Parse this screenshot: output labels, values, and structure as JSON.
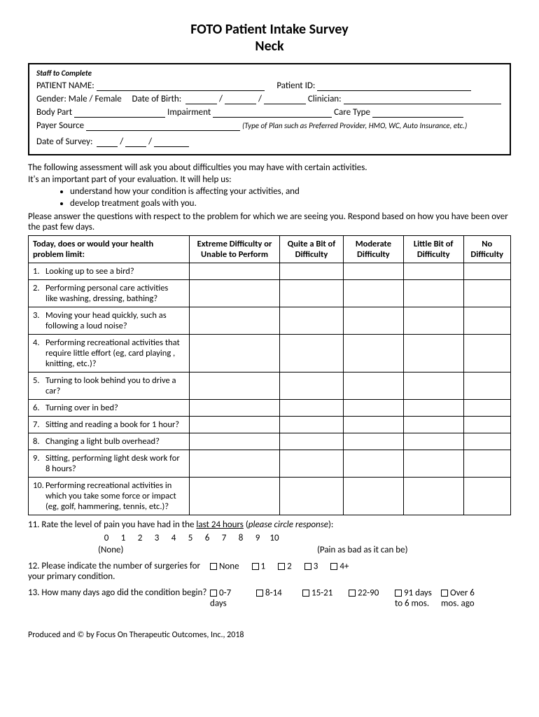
{
  "header": {
    "title": "FOTO Patient Intake Survey",
    "subtitle": "Neck"
  },
  "staff": {
    "heading": "Staff to Complete",
    "patient_name_label": "PATIENT NAME:",
    "patient_id_label": "Patient ID:",
    "gender_label": "Gender: Male / Female",
    "dob_label": "Date of Birth:",
    "clinician_label": "Clinician:",
    "body_part_label": "Body Part",
    "impairment_label": "Impairment",
    "care_type_label": "Care Type",
    "payer_source_label": "Payer Source",
    "payer_note": "(Type of Plan such as Preferred Provider, HMO, WC, Auto Insurance, etc.)",
    "date_survey_label": "Date of Survey:"
  },
  "intro": {
    "line1": "The following assessment will ask you about difficulties you may have with certain activities.",
    "line2": "It's an important part of your evaluation.  It will help us:",
    "bullet1": "understand how your condition is affecting your activities, and",
    "bullet2": "develop treatment goals with you.",
    "line3": "Please answer the questions with respect to the problem for which we are seeing you.  Respond based on how you have been over the past few days."
  },
  "table": {
    "prompt": "Today, does or would your health problem limit:",
    "cols": [
      "Extreme Difficulty or Unable to Perform",
      "Quite a Bit of Difficulty",
      "Moderate Difficulty",
      "Little Bit of Difficulty",
      "No Difficulty"
    ],
    "questions": [
      {
        "n": "1.",
        "t": "Looking up to see a bird?"
      },
      {
        "n": "2.",
        "t": "Performing personal care activities like washing, dressing, bathing?"
      },
      {
        "n": "3.",
        "t": "Moving your head quickly, such as following a loud noise?"
      },
      {
        "n": "4.",
        "t": "Performing recreational activities that require little effort (eg, card playing , knitting, etc.)?"
      },
      {
        "n": "5.",
        "t": "Turning to look behind you to drive a car?"
      },
      {
        "n": "6.",
        "t": "Turning over in bed?"
      },
      {
        "n": "7.",
        "t": "Sitting and reading a book for 1 hour?"
      },
      {
        "n": "8.",
        "t": "Changing a light bulb overhead?"
      },
      {
        "n": "9.",
        "t": "Sitting, performing light desk work for 8 hours?"
      },
      {
        "n": "10.",
        "t": "Performing recreational activities in which you take some force or impact (eg, golf, hammering, tennis, etc.)?"
      }
    ]
  },
  "q11": {
    "prefix": "11. Rate the level of pain you have had in the ",
    "u": "last 24 hours",
    "suffix": " (",
    "italic": "please circle response",
    "end": "):",
    "scale": [
      "0",
      "1",
      "2",
      "3",
      "4",
      "5",
      "6",
      "7",
      "8",
      "9",
      "10"
    ],
    "none": "(None)",
    "pain": "(Pain as bad as it can be)"
  },
  "q12": {
    "label": "12. Please indicate the number of surgeries for your primary condition.",
    "options": [
      "None",
      "1",
      "2",
      "3",
      "4+"
    ]
  },
  "q13": {
    "label": "13. How many days ago did the condition begin?",
    "options": [
      "0-7 days",
      "8-14",
      "15-21",
      "22-90",
      "91 days to 6 mos.",
      "Over 6 mos. ago"
    ]
  },
  "footer": "Produced and © by Focus On Therapeutic Outcomes, Inc., 2018"
}
